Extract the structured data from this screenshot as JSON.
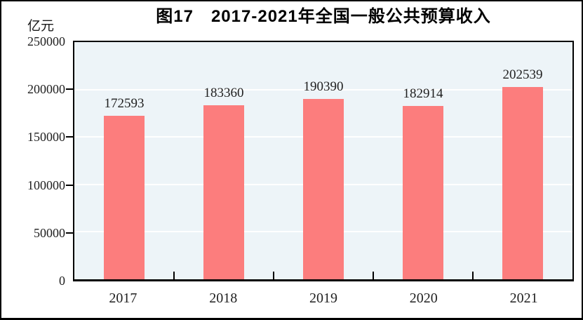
{
  "figure": {
    "title": "图17　2017-2021年全国一般公共预算收入",
    "y_axis_unit": "亿元"
  },
  "chart_data": {
    "type": "bar",
    "title": "图17　2017-2021年全国一般公共预算收入",
    "categories": [
      "2017",
      "2018",
      "2019",
      "2020",
      "2021"
    ],
    "values": [
      172593,
      183360,
      190390,
      182914,
      202539
    ],
    "data_labels": [
      "172593",
      "183360",
      "190390",
      "182914",
      "202539"
    ],
    "xlabel": "",
    "ylabel": "亿元",
    "ylim": [
      0,
      250000
    ],
    "yticks": [
      0,
      50000,
      100000,
      150000,
      200000,
      250000
    ],
    "ytick_labels": [
      "0",
      "50000",
      "100000",
      "150000",
      "200000",
      "250000"
    ],
    "grid": "horizontal-white-gridlines",
    "legend": "none",
    "bar_color": "#FC7D7D",
    "plot_bg_color": "#EDF4F8",
    "gridline_color": "#FFFFFF",
    "axis_color": "#000000"
  }
}
